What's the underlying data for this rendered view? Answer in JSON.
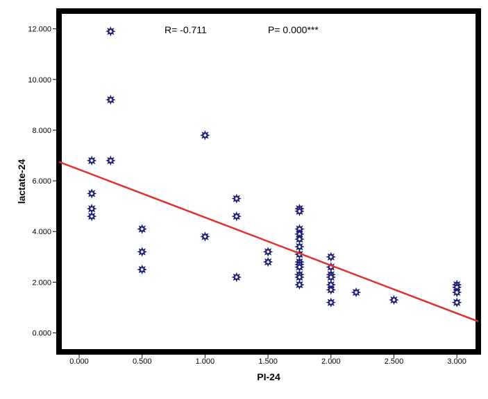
{
  "chart_data": {
    "type": "scatter",
    "xlabel": "PI-24",
    "ylabel": "lactate-24",
    "xlim": [
      -0.16,
      3.17
    ],
    "ylim": [
      -0.75,
      12.7
    ],
    "x_ticks": [
      0,
      0.5,
      1,
      1.5,
      2,
      2.5,
      3
    ],
    "x_tick_labels": [
      "0.000",
      "0.500",
      "1.000",
      "1.500",
      "2.000",
      "2.500",
      "3.000"
    ],
    "y_ticks": [
      0,
      2,
      4,
      6,
      8,
      10,
      12
    ],
    "y_tick_labels": [
      "0.000",
      "2.000",
      "4.000",
      "6.000",
      "8.000",
      "10.000",
      "12.000"
    ],
    "annotations": [
      {
        "text": "R= -0.711"
      },
      {
        "text": "P= 0.000***"
      }
    ],
    "grid": false,
    "marker_color": "#1a1a6e",
    "fit_line_color": "#e03030",
    "points": [
      {
        "x": 0.1,
        "y": 6.8
      },
      {
        "x": 0.1,
        "y": 5.5
      },
      {
        "x": 0.1,
        "y": 4.9
      },
      {
        "x": 0.1,
        "y": 4.6
      },
      {
        "x": 0.25,
        "y": 11.9
      },
      {
        "x": 0.25,
        "y": 9.2
      },
      {
        "x": 0.25,
        "y": 6.8
      },
      {
        "x": 0.5,
        "y": 4.1
      },
      {
        "x": 0.5,
        "y": 3.2
      },
      {
        "x": 0.5,
        "y": 2.5
      },
      {
        "x": 1.0,
        "y": 7.8
      },
      {
        "x": 1.0,
        "y": 3.8
      },
      {
        "x": 1.25,
        "y": 5.3
      },
      {
        "x": 1.25,
        "y": 4.6
      },
      {
        "x": 1.25,
        "y": 2.2
      },
      {
        "x": 1.5,
        "y": 3.2
      },
      {
        "x": 1.5,
        "y": 2.8
      },
      {
        "x": 1.75,
        "y": 4.9
      },
      {
        "x": 1.75,
        "y": 4.8
      },
      {
        "x": 1.75,
        "y": 4.1
      },
      {
        "x": 1.75,
        "y": 3.9
      },
      {
        "x": 1.75,
        "y": 3.7
      },
      {
        "x": 1.75,
        "y": 3.4
      },
      {
        "x": 1.75,
        "y": 3.1
      },
      {
        "x": 1.75,
        "y": 2.8
      },
      {
        "x": 1.75,
        "y": 2.7
      },
      {
        "x": 1.75,
        "y": 2.6
      },
      {
        "x": 1.75,
        "y": 2.3
      },
      {
        "x": 1.75,
        "y": 2.2
      },
      {
        "x": 1.75,
        "y": 1.9
      },
      {
        "x": 2.0,
        "y": 3.0
      },
      {
        "x": 2.0,
        "y": 2.6
      },
      {
        "x": 2.0,
        "y": 2.3
      },
      {
        "x": 2.0,
        "y": 2.2
      },
      {
        "x": 2.0,
        "y": 1.9
      },
      {
        "x": 2.0,
        "y": 1.7
      },
      {
        "x": 2.0,
        "y": 1.2
      },
      {
        "x": 2.2,
        "y": 1.6
      },
      {
        "x": 2.5,
        "y": 1.3
      },
      {
        "x": 3.0,
        "y": 1.9
      },
      {
        "x": 3.0,
        "y": 1.8
      },
      {
        "x": 3.0,
        "y": 1.6
      },
      {
        "x": 3.0,
        "y": 1.2
      }
    ],
    "fit_line": {
      "x": [
        -0.16,
        3.17
      ],
      "y": [
        6.75,
        0.45
      ]
    }
  }
}
